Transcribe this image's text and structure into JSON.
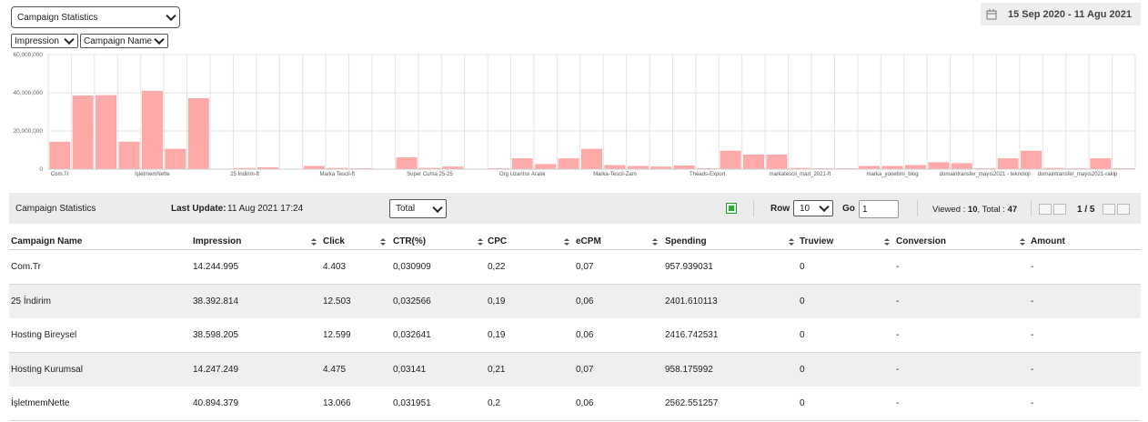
{
  "header": {
    "report_select": "Campaign Statistics",
    "date_range": "15 Sep 2020 - 11 Agu 2021",
    "metric_select": "Impression",
    "group_select": "Campaign Name"
  },
  "chart": {
    "type": "bar",
    "color": "#ffaaaa",
    "grid": true,
    "categories": [
      "Com.Tr",
      null,
      null,
      null,
      "İşletmemNette",
      null,
      null,
      null,
      "25 İndirim-ft",
      null,
      null,
      null,
      "Marka Tescil-ft",
      null,
      null,
      null,
      "Super Cuma 25-25",
      null,
      null,
      null,
      "Org Uzantısı Aralık",
      null,
      null,
      null,
      "Marka-Tescil-Zam",
      null,
      null,
      null,
      "Theads-Export",
      null,
      null,
      null,
      "markatescil_mart_2021-ft",
      null,
      null,
      null,
      "marka_yonetimi_blog",
      null,
      null,
      null,
      "domaintransfer_mayıs2021 - teknoloji",
      null,
      null,
      null,
      "domaintransfer_mayıs2021-rakip",
      null,
      null
    ],
    "values": [
      14244995,
      38392814,
      38598205,
      14247249,
      40894379,
      10500000,
      37000000,
      0,
      500000,
      800000,
      0,
      1500000,
      500000,
      300000,
      0,
      6000000,
      500000,
      1200000,
      0,
      300000,
      5500000,
      2500000,
      5500000,
      10500000,
      2000000,
      1500000,
      1200000,
      1800000,
      300000,
      9500000,
      7500000,
      7500000,
      500000,
      300000,
      300000,
      1500000,
      1500000,
      2000000,
      3500000,
      3000000,
      300000,
      5500000,
      9500000,
      500000,
      300000,
      5500000,
      300000
    ],
    "ylim": [
      0,
      60000000
    ],
    "yticks": [
      0,
      {
        "value": 20000000,
        "label": "20,000,000"
      },
      {
        "value": 40000000,
        "label": "40,000,000"
      },
      {
        "value": 60000000,
        "label": "60,000,000"
      }
    ]
  },
  "toolbar": {
    "title": "Campaign Statistics",
    "last_update_label": "Last Update:",
    "last_update": "11 Aug 2021 17:24",
    "total_select": "Total",
    "row_label": "Row",
    "row_select": "10",
    "go_label": "Go",
    "go_input": "1",
    "viewed_label": "Viewed :",
    "viewed": "10",
    "total_label": ", Total :",
    "total": "47",
    "page": "1 / 5"
  },
  "table": {
    "columns": [
      "Campaign Name",
      "Impression",
      "Click",
      "CTR(%)",
      "CPC",
      "eCPM",
      "Spending",
      "Truview",
      "Conversion",
      "Amount"
    ],
    "rows": [
      [
        "Com.Tr",
        "14.244.995",
        "4.403",
        "0,030909",
        "0,22",
        "0,07",
        "957.939031",
        "0",
        "-",
        "-"
      ],
      [
        "25 İndirim",
        "38.392.814",
        "12.503",
        "0,032566",
        "0,19",
        "0,06",
        "2401.610113",
        "0",
        "-",
        "-"
      ],
      [
        "Hosting Bireysel",
        "38.598.205",
        "12.599",
        "0,032641",
        "0,19",
        "0,06",
        "2416.742531",
        "0",
        "-",
        "-"
      ],
      [
        "Hosting Kurumsal",
        "14.247.249",
        "4.475",
        "0,03141",
        "0,21",
        "0,07",
        "958.175992",
        "0",
        "-",
        "-"
      ],
      [
        "İşletmemNette",
        "40.894.379",
        "13.066",
        "0,031951",
        "0,2",
        "0,06",
        "2562.551257",
        "0",
        "-",
        "-"
      ]
    ]
  }
}
